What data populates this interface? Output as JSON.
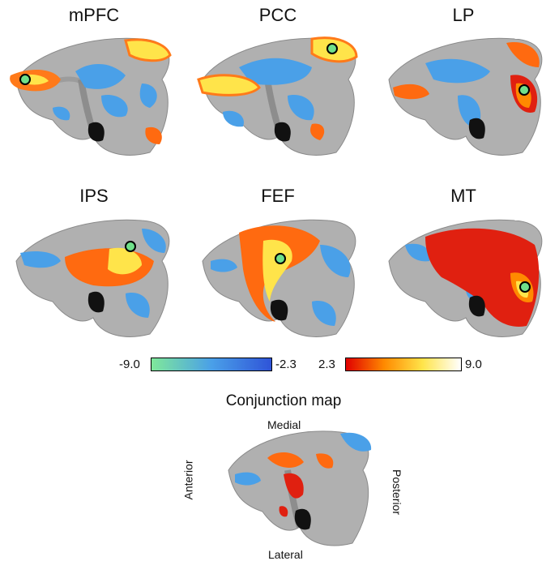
{
  "panels": [
    {
      "label": "mPFC"
    },
    {
      "label": "PCC"
    },
    {
      "label": "LP"
    },
    {
      "label": "IPS"
    },
    {
      "label": "FEF"
    },
    {
      "label": "MT"
    }
  ],
  "colorbar": {
    "neg_min": "-9.0",
    "neg_max": "-2.3",
    "pos_min": "2.3",
    "pos_max": "9.0",
    "colors": {
      "neg_low": "#7fe89a",
      "neg_high": "#2f54d8",
      "pos_low": "#e00000",
      "pos_mid": "#ff8a00",
      "pos_high": "#ffffff"
    }
  },
  "conjunction": {
    "title": "Conjunction map",
    "medial": "Medial",
    "lateral": "Lateral",
    "anterior": "Anterior",
    "posterior": "Posterior"
  }
}
